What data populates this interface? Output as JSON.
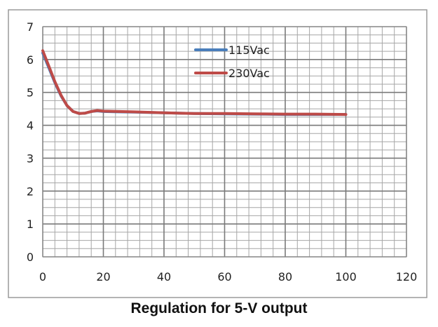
{
  "chart_data": {
    "type": "line",
    "title": "Regulation for 5-V output",
    "xlabel": "",
    "ylabel": "",
    "xlim": [
      0,
      120
    ],
    "ylim": [
      0,
      7
    ],
    "x_ticks": [
      0,
      20,
      40,
      60,
      80,
      100,
      120
    ],
    "y_ticks": [
      0,
      1,
      2,
      3,
      4,
      5,
      6,
      7
    ],
    "x_minor_step": 4,
    "y_minor_step": 0.25,
    "grid": true,
    "legend_position": "top-center",
    "series": [
      {
        "name": "115Vac",
        "color": "#4a7ebb",
        "x": [
          0,
          2,
          4,
          6,
          8,
          10,
          12,
          14,
          16,
          18,
          20,
          25,
          30,
          40,
          50,
          60,
          70,
          80,
          90,
          100
        ],
        "y": [
          6.2,
          5.75,
          5.3,
          4.9,
          4.6,
          4.42,
          4.36,
          4.37,
          4.42,
          4.44,
          4.42,
          4.41,
          4.4,
          4.38,
          4.36,
          4.35,
          4.34,
          4.33,
          4.33,
          4.33
        ]
      },
      {
        "name": "230Vac",
        "color": "#be4b48",
        "x": [
          0,
          2,
          4,
          6,
          8,
          10,
          12,
          14,
          16,
          18,
          20,
          25,
          30,
          40,
          50,
          60,
          70,
          80,
          90,
          100
        ],
        "y": [
          6.27,
          5.8,
          5.33,
          4.92,
          4.6,
          4.42,
          4.36,
          4.37,
          4.42,
          4.45,
          4.43,
          4.42,
          4.41,
          4.38,
          4.36,
          4.36,
          4.35,
          4.34,
          4.34,
          4.33
        ]
      }
    ]
  }
}
